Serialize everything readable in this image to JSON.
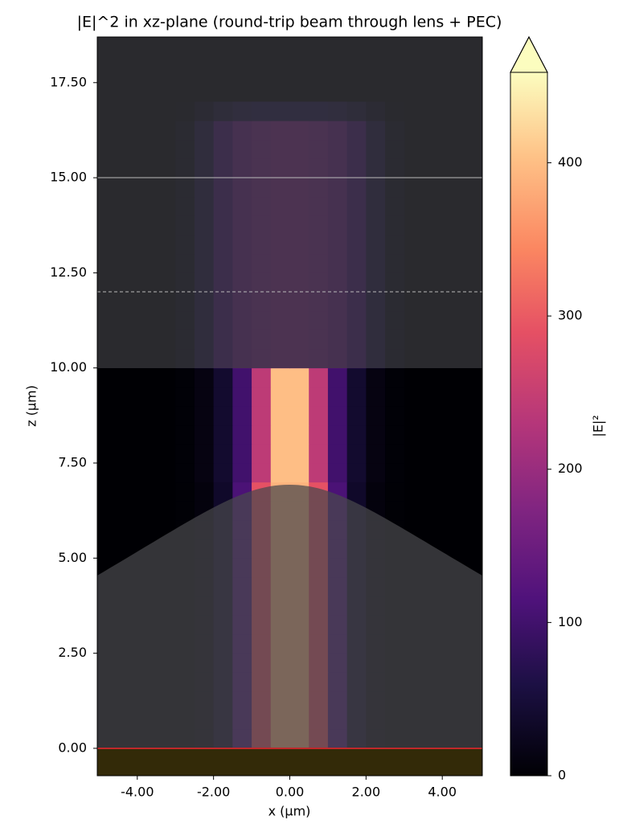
{
  "chart_data": {
    "type": "heatmap",
    "title": "|E|^2 in xz-plane (round-trip beam through lens + PEC)",
    "xlabel": "x (µm)",
    "ylabel": "z (µm)",
    "colorbar_label": "|E|²",
    "colormap": "magma",
    "xlim": [
      -5.05,
      5.05
    ],
    "ylim": [
      -0.72,
      18.7
    ],
    "xticks": [
      {
        "value": -4,
        "label": "-4.00"
      },
      {
        "value": -2,
        "label": "-2.00"
      },
      {
        "value": 0,
        "label": "0.00"
      },
      {
        "value": 2,
        "label": "2.00"
      },
      {
        "value": 4,
        "label": "4.00"
      }
    ],
    "yticks": [
      {
        "value": 0,
        "label": "0.00"
      },
      {
        "value": 2.5,
        "label": "2.50"
      },
      {
        "value": 5,
        "label": "5.00"
      },
      {
        "value": 7.5,
        "label": "7.50"
      },
      {
        "value": 10,
        "label": "10.00"
      },
      {
        "value": 12.5,
        "label": "12.50"
      },
      {
        "value": 15,
        "label": "15.00"
      },
      {
        "value": 17.5,
        "label": "17.50"
      }
    ],
    "clim": [
      0,
      459
    ],
    "cticks": [
      0,
      100,
      200,
      300,
      400
    ],
    "xbins": [
      -3,
      -2.5,
      -2,
      -1.5,
      -1,
      -0.5,
      0,
      0.5,
      1,
      1.5,
      2,
      2.5,
      3
    ],
    "ybins": [
      0,
      0.5,
      1,
      1.5,
      2,
      2.5,
      3,
      3.5,
      4,
      4.5,
      5,
      5.5,
      6,
      6.5,
      7,
      7.5,
      8,
      8.5,
      9,
      9.5,
      10,
      10.5,
      11,
      11.5,
      12,
      12.5,
      13,
      13.5,
      14,
      14.5,
      15,
      15.5,
      16,
      16.5,
      17
    ],
    "values": [
      [
        2,
        8,
        35,
        110,
        290,
        390,
        390,
        290,
        110,
        35,
        8,
        2
      ],
      [
        2,
        8,
        35,
        110,
        290,
        390,
        390,
        290,
        110,
        35,
        8,
        2
      ],
      [
        2,
        8,
        35,
        110,
        290,
        390,
        390,
        290,
        110,
        35,
        8,
        2
      ],
      [
        2,
        8,
        35,
        110,
        290,
        390,
        390,
        290,
        110,
        35,
        8,
        2
      ],
      [
        2,
        8,
        35,
        110,
        290,
        390,
        390,
        290,
        110,
        35,
        8,
        2
      ],
      [
        2,
        8,
        35,
        110,
        290,
        390,
        390,
        290,
        110,
        35,
        8,
        2
      ],
      [
        2,
        8,
        35,
        110,
        290,
        390,
        390,
        290,
        110,
        35,
        8,
        2
      ],
      [
        2,
        8,
        35,
        110,
        290,
        390,
        390,
        290,
        110,
        35,
        8,
        2
      ],
      [
        2,
        8,
        35,
        110,
        290,
        390,
        390,
        290,
        110,
        35,
        8,
        2
      ],
      [
        2,
        8,
        35,
        110,
        290,
        390,
        390,
        290,
        110,
        35,
        8,
        2
      ],
      [
        2,
        8,
        35,
        110,
        290,
        390,
        390,
        290,
        110,
        35,
        8,
        2
      ],
      [
        2,
        8,
        35,
        110,
        290,
        390,
        390,
        290,
        110,
        35,
        8,
        2
      ],
      [
        2,
        8,
        35,
        110,
        290,
        390,
        390,
        290,
        110,
        35,
        8,
        2
      ],
      [
        2,
        8,
        35,
        110,
        290,
        390,
        390,
        290,
        110,
        35,
        8,
        2
      ],
      [
        3,
        12,
        40,
        100,
        240,
        400,
        400,
        240,
        100,
        40,
        12,
        3
      ],
      [
        3,
        12,
        40,
        100,
        240,
        400,
        400,
        240,
        100,
        40,
        12,
        3
      ],
      [
        3,
        12,
        40,
        100,
        240,
        400,
        400,
        240,
        100,
        40,
        12,
        3
      ],
      [
        3,
        12,
        40,
        100,
        240,
        400,
        400,
        240,
        100,
        40,
        12,
        3
      ],
      [
        3,
        12,
        40,
        100,
        240,
        400,
        400,
        240,
        100,
        40,
        12,
        3
      ],
      [
        3,
        12,
        40,
        100,
        240,
        400,
        400,
        240,
        100,
        40,
        12,
        3
      ],
      [
        15,
        50,
        100,
        140,
        160,
        165,
        165,
        160,
        140,
        100,
        50,
        15
      ],
      [
        15,
        50,
        100,
        140,
        160,
        165,
        165,
        160,
        140,
        100,
        50,
        15
      ],
      [
        15,
        50,
        100,
        140,
        160,
        165,
        165,
        160,
        140,
        100,
        50,
        15
      ],
      [
        15,
        50,
        100,
        140,
        160,
        165,
        165,
        160,
        140,
        100,
        50,
        15
      ],
      [
        15,
        50,
        100,
        140,
        160,
        165,
        165,
        160,
        140,
        100,
        50,
        15
      ],
      [
        15,
        50,
        100,
        140,
        160,
        165,
        165,
        160,
        140,
        100,
        50,
        15
      ],
      [
        15,
        50,
        100,
        140,
        160,
        165,
        165,
        160,
        140,
        100,
        50,
        15
      ],
      [
        15,
        50,
        100,
        140,
        160,
        165,
        165,
        160,
        140,
        100,
        50,
        15
      ],
      [
        15,
        50,
        100,
        140,
        160,
        165,
        165,
        160,
        140,
        100,
        50,
        15
      ],
      [
        15,
        50,
        100,
        140,
        160,
        165,
        165,
        160,
        140,
        100,
        50,
        15
      ],
      [
        15,
        50,
        100,
        140,
        160,
        165,
        165,
        160,
        140,
        100,
        50,
        15
      ],
      [
        15,
        50,
        100,
        140,
        160,
        165,
        165,
        160,
        140,
        100,
        50,
        15
      ],
      [
        15,
        50,
        100,
        140,
        160,
        165,
        165,
        160,
        140,
        100,
        50,
        15
      ],
      [
        5,
        20,
        40,
        55,
        60,
        60,
        60,
        60,
        55,
        40,
        20,
        5
      ]
    ]
  }
}
